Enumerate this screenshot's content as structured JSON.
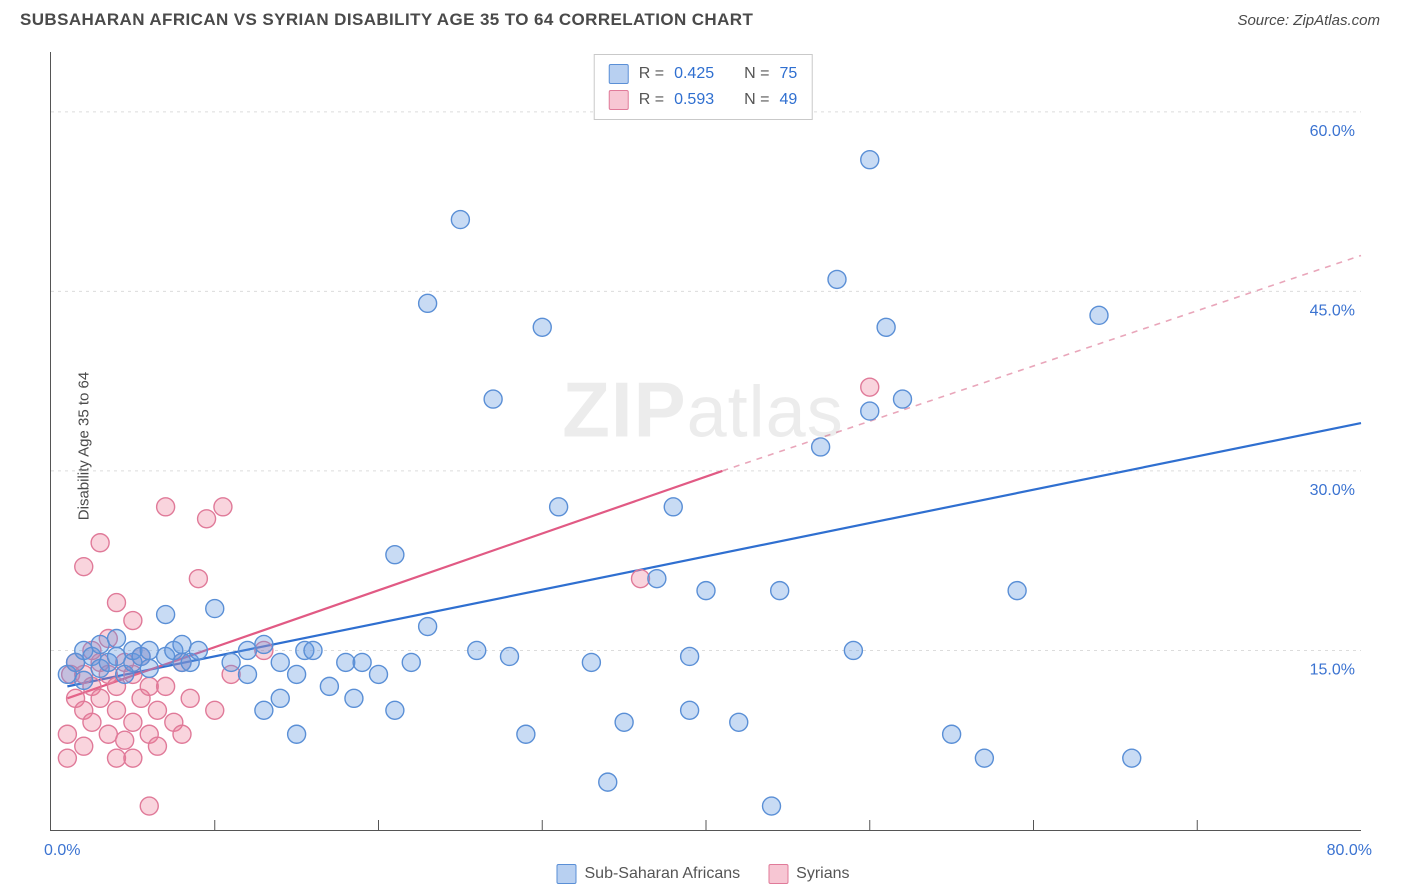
{
  "header": {
    "title": "SUBSAHARAN AFRICAN VS SYRIAN DISABILITY AGE 35 TO 64 CORRELATION CHART",
    "source": "Source: ZipAtlas.com"
  },
  "ylabel": "Disability Age 35 to 64",
  "watermark": {
    "bold": "ZIP",
    "rest": "atlas"
  },
  "chart": {
    "type": "scatter",
    "xlim": [
      0,
      80
    ],
    "ylim": [
      0,
      65
    ],
    "x_ticks": [
      0,
      80
    ],
    "x_tick_labels": [
      "0.0%",
      "80.0%"
    ],
    "y_ticks": [
      15,
      30,
      45,
      60
    ],
    "y_tick_labels": [
      "15.0%",
      "30.0%",
      "45.0%",
      "60.0%"
    ],
    "minor_x_ticks": [
      10,
      20,
      30,
      40,
      50,
      60,
      70
    ],
    "grid_color": "#dcdcdc",
    "grid_dash": "3,4",
    "axis_color": "#555555",
    "tick_label_color": "#3b73d1",
    "background": "#ffffff",
    "marker_radius": 9,
    "marker_stroke_width": 1.4,
    "series": [
      {
        "name": "Sub-Saharan Africans",
        "fill": "rgba(97,151,224,0.35)",
        "stroke": "#5a8fd6",
        "points": [
          [
            1,
            13
          ],
          [
            1.5,
            14
          ],
          [
            2,
            15
          ],
          [
            2,
            12.5
          ],
          [
            2.5,
            14.5
          ],
          [
            3,
            13.5
          ],
          [
            3,
            15.5
          ],
          [
            3.5,
            14
          ],
          [
            4,
            14.5
          ],
          [
            4,
            16
          ],
          [
            4.5,
            13
          ],
          [
            5,
            14
          ],
          [
            5,
            15
          ],
          [
            5.5,
            14.5
          ],
          [
            6,
            15
          ],
          [
            6,
            13.5
          ],
          [
            7,
            14.5
          ],
          [
            7,
            18
          ],
          [
            7.5,
            15
          ],
          [
            8,
            14
          ],
          [
            8,
            15.5
          ],
          [
            8.5,
            14
          ],
          [
            9,
            15
          ],
          [
            10,
            18.5
          ],
          [
            11,
            14
          ],
          [
            12,
            13
          ],
          [
            12,
            15
          ],
          [
            13,
            10
          ],
          [
            13,
            15.5
          ],
          [
            14,
            11
          ],
          [
            14,
            14
          ],
          [
            15,
            8
          ],
          [
            15,
            13
          ],
          [
            15.5,
            15
          ],
          [
            16,
            15
          ],
          [
            17,
            12
          ],
          [
            18,
            14
          ],
          [
            18.5,
            11
          ],
          [
            19,
            14
          ],
          [
            20,
            13
          ],
          [
            21,
            10
          ],
          [
            21,
            23
          ],
          [
            22,
            14
          ],
          [
            23,
            17
          ],
          [
            23,
            44
          ],
          [
            25,
            51
          ],
          [
            26,
            15
          ],
          [
            27,
            36
          ],
          [
            28,
            14.5
          ],
          [
            29,
            8
          ],
          [
            30,
            42
          ],
          [
            31,
            27
          ],
          [
            33,
            14
          ],
          [
            34,
            4
          ],
          [
            35,
            9
          ],
          [
            37,
            21
          ],
          [
            38,
            27
          ],
          [
            39,
            14.5
          ],
          [
            39,
            10
          ],
          [
            40,
            20
          ],
          [
            42,
            9
          ],
          [
            44,
            2
          ],
          [
            44.5,
            20
          ],
          [
            47,
            32
          ],
          [
            48,
            46
          ],
          [
            49,
            15
          ],
          [
            50,
            35
          ],
          [
            50,
            56
          ],
          [
            51,
            42
          ],
          [
            52,
            36
          ],
          [
            55,
            8
          ],
          [
            57,
            6
          ],
          [
            59,
            20
          ],
          [
            64,
            43
          ],
          [
            66,
            6
          ]
        ],
        "trend": {
          "x1": 1,
          "y1": 12,
          "x2": 80,
          "y2": 34,
          "stroke": "#2f6fd0",
          "width": 2.2,
          "dash": "none"
        }
      },
      {
        "name": "Syrians",
        "fill": "rgba(235,120,150,0.32)",
        "stroke": "#e07a99",
        "points": [
          [
            1,
            6
          ],
          [
            1,
            8
          ],
          [
            1.2,
            13
          ],
          [
            1.5,
            11
          ],
          [
            1.5,
            14
          ],
          [
            2,
            7
          ],
          [
            2,
            10
          ],
          [
            2,
            13
          ],
          [
            2,
            22
          ],
          [
            2.5,
            9
          ],
          [
            2.5,
            12
          ],
          [
            2.5,
            15
          ],
          [
            3,
            24
          ],
          [
            3,
            14
          ],
          [
            3,
            11
          ],
          [
            3.5,
            8
          ],
          [
            3.5,
            13
          ],
          [
            3.5,
            16
          ],
          [
            4,
            6
          ],
          [
            4,
            10
          ],
          [
            4,
            12
          ],
          [
            4,
            19
          ],
          [
            4.5,
            7.5
          ],
          [
            4.5,
            14
          ],
          [
            5,
            6
          ],
          [
            5,
            9
          ],
          [
            5,
            13
          ],
          [
            5,
            17.5
          ],
          [
            5.5,
            11
          ],
          [
            5.5,
            14.5
          ],
          [
            6,
            2
          ],
          [
            6,
            8
          ],
          [
            6,
            12
          ],
          [
            6.5,
            7
          ],
          [
            6.5,
            10
          ],
          [
            7,
            12
          ],
          [
            7,
            27
          ],
          [
            7.5,
            9
          ],
          [
            8,
            8
          ],
          [
            8,
            14
          ],
          [
            8.5,
            11
          ],
          [
            9,
            21
          ],
          [
            9.5,
            26
          ],
          [
            10,
            10
          ],
          [
            10.5,
            27
          ],
          [
            11,
            13
          ],
          [
            13,
            15
          ],
          [
            36,
            21
          ],
          [
            50,
            37
          ]
        ],
        "trend_solid": {
          "x1": 1,
          "y1": 11,
          "x2": 41,
          "y2": 30,
          "stroke": "#e15a84",
          "width": 2.2
        },
        "trend_dash": {
          "x1": 41,
          "y1": 30,
          "x2": 80,
          "y2": 48,
          "stroke": "#e9a6ba",
          "width": 1.6,
          "dash": "6,6"
        }
      }
    ]
  },
  "legend_top": {
    "rows": [
      {
        "color_fill": "rgba(97,151,224,0.45)",
        "color_stroke": "#5a8fd6",
        "r_label": "R =",
        "r_val": "0.425",
        "n_label": "N =",
        "n_val": "75",
        "val_color": "#2f6fd0"
      },
      {
        "color_fill": "rgba(235,120,150,0.42)",
        "color_stroke": "#e07a99",
        "r_label": "R =",
        "r_val": "0.593",
        "n_label": "N =",
        "n_val": "49",
        "val_color": "#2f6fd0"
      }
    ]
  },
  "legend_bottom": {
    "items": [
      {
        "color_fill": "rgba(97,151,224,0.45)",
        "color_stroke": "#5a8fd6",
        "label": "Sub-Saharan Africans"
      },
      {
        "color_fill": "rgba(235,120,150,0.42)",
        "color_stroke": "#e07a99",
        "label": "Syrians"
      }
    ]
  }
}
